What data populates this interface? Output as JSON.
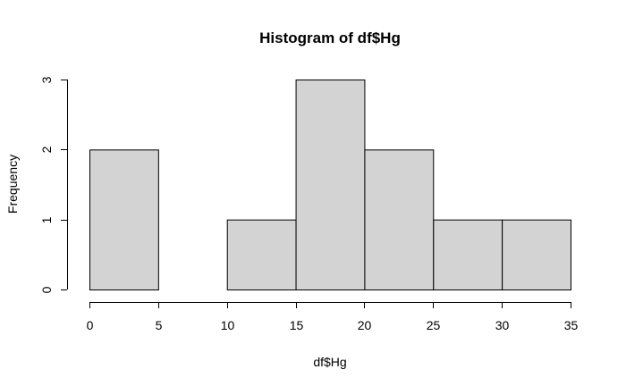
{
  "chart_data": {
    "type": "bar",
    "title": "Histogram of df$Hg",
    "xlabel": "df$Hg",
    "ylabel": "Frequency",
    "bins": [
      {
        "from": 0,
        "to": 5,
        "count": 2
      },
      {
        "from": 5,
        "to": 10,
        "count": 0
      },
      {
        "from": 10,
        "to": 15,
        "count": 1
      },
      {
        "from": 15,
        "to": 20,
        "count": 3
      },
      {
        "from": 20,
        "to": 25,
        "count": 2
      },
      {
        "from": 25,
        "to": 30,
        "count": 1
      },
      {
        "from": 30,
        "to": 35,
        "count": 1
      }
    ],
    "xlim": [
      0,
      35
    ],
    "ylim": [
      0,
      3
    ],
    "xticks": [
      "0",
      "5",
      "10",
      "15",
      "20",
      "25",
      "30",
      "35"
    ],
    "yticks": [
      "0",
      "1",
      "2",
      "3"
    ],
    "grid": false,
    "bar_fill": "#d3d3d3",
    "bar_stroke": "#000000"
  }
}
